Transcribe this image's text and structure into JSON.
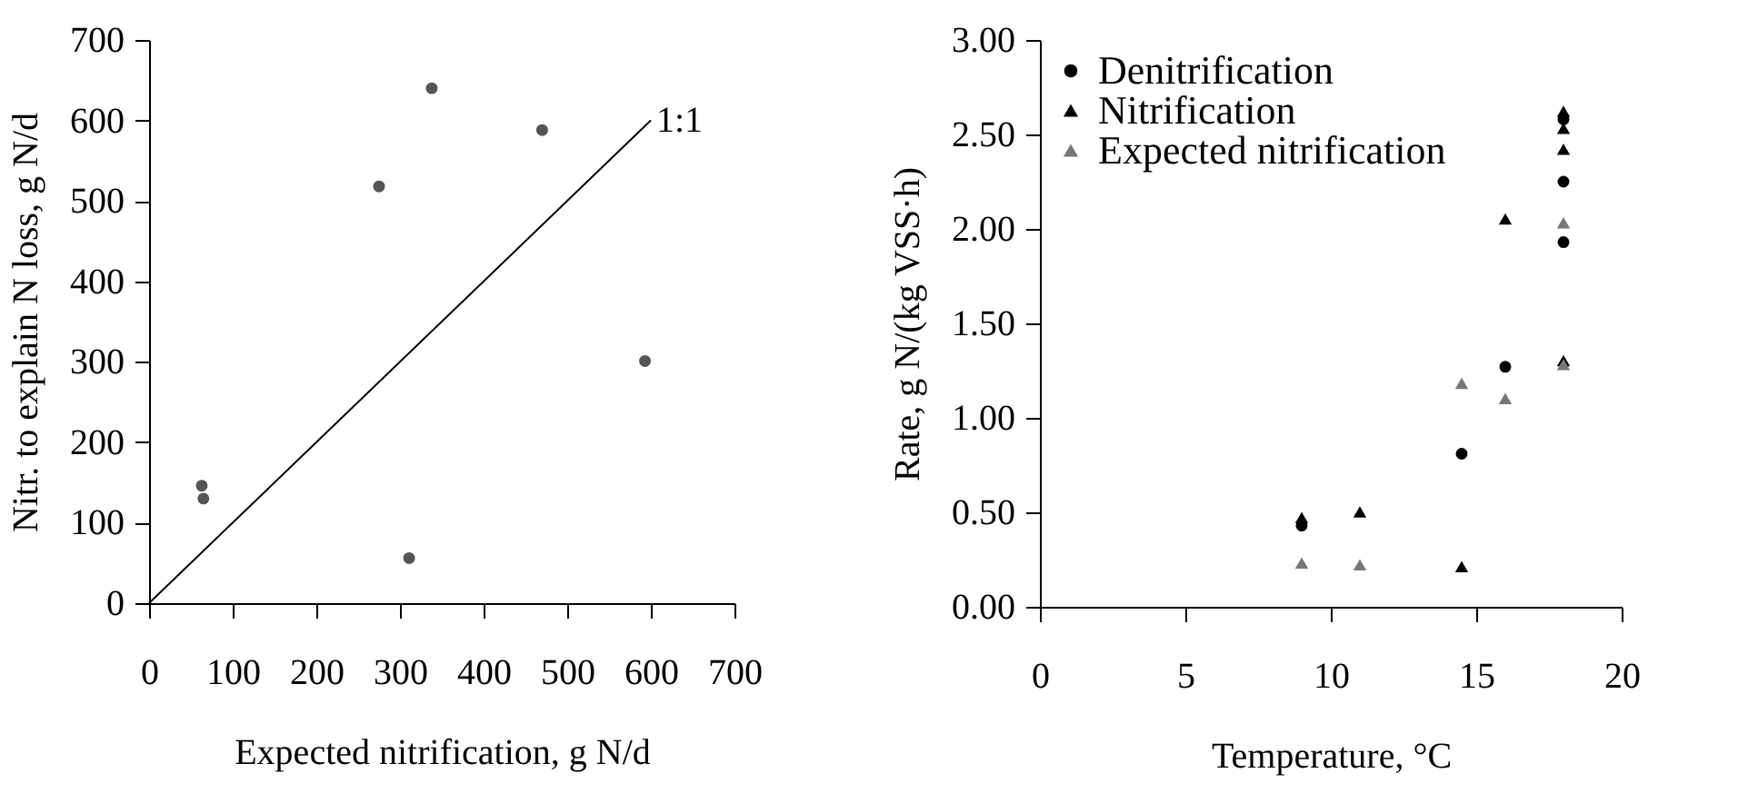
{
  "chart_data": [
    {
      "type": "scatter",
      "xlabel": "Expected nitrification, g N/d",
      "ylabel": "Nitr. to explain N loss, g N/d",
      "xlim": [
        0,
        700
      ],
      "xticks": [
        0,
        100,
        200,
        300,
        400,
        500,
        600,
        700
      ],
      "ylim": [
        0,
        700
      ],
      "yticks": [
        0,
        100,
        200,
        300,
        400,
        500,
        600,
        700
      ],
      "grid": false,
      "legend": false,
      "series": [
        {
          "color": "#555555",
          "marker": "circle",
          "x": [
            63,
            65,
            275,
            311,
            338,
            470,
            593
          ],
          "values": [
            146,
            130,
            518,
            56,
            640,
            588,
            301
          ]
        },
        {
          "type": "line",
          "color": "#000000",
          "marker": "none",
          "x": [
            0,
            600
          ],
          "values": [
            0,
            600
          ]
        }
      ],
      "annotations": [
        {
          "text": "1:1",
          "x": 600,
          "y": 600
        }
      ]
    },
    {
      "type": "scatter",
      "xlabel": "Temperature, °C",
      "ylabel": "Rate, g N/(kg VSS·h)",
      "xlim": [
        0,
        20
      ],
      "xticks": [
        0,
        5,
        10,
        15,
        20
      ],
      "ylim": [
        0,
        3
      ],
      "yticks": [
        {
          "value": 0,
          "label": "0.00"
        },
        {
          "value": 0.5,
          "label": "0.50"
        },
        {
          "value": 1,
          "label": "1.00"
        },
        {
          "value": 1.5,
          "label": "1.50"
        },
        {
          "value": 2,
          "label": "2.00"
        },
        {
          "value": 2.5,
          "label": "2.50"
        },
        {
          "value": 3,
          "label": "3.00"
        }
      ],
      "grid": false,
      "legend": "top left",
      "series": [
        {
          "name": "Denitrification",
          "color": "#000000",
          "marker": "circle",
          "x": [
            9,
            14.5,
            16,
            18,
            18,
            18
          ],
          "values": [
            0.43,
            0.81,
            1.27,
            2.58,
            2.25,
            1.93
          ]
        },
        {
          "name": "Nitrification",
          "color": "#000000",
          "marker": "triangle",
          "x": [
            9,
            11,
            14.5,
            16,
            18,
            18,
            18,
            18
          ],
          "values": [
            0.47,
            0.5,
            0.21,
            2.05,
            2.62,
            2.53,
            2.42,
            1.3
          ]
        },
        {
          "name": "Expected nitrification",
          "color": "#777777",
          "marker": "triangle",
          "x": [
            9,
            11,
            14.5,
            16,
            18,
            18
          ],
          "values": [
            0.23,
            0.22,
            1.18,
            1.1,
            2.03,
            1.28
          ]
        }
      ]
    }
  ]
}
